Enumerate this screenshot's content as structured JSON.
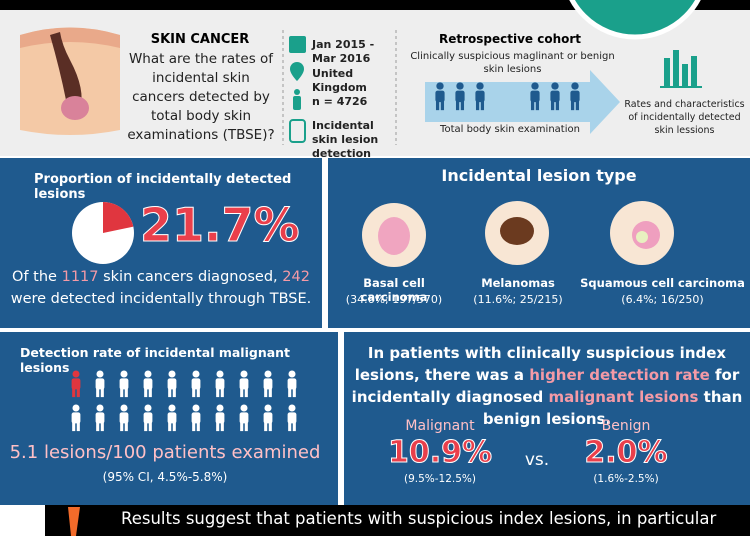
{
  "header": {
    "title": "SKIN CANCER",
    "question": "What are the rates of incidental skin cancers detected by total body skin examinations (TBSE)?"
  },
  "study": {
    "items": [
      "Jan 2015 - Mar 2016",
      "United Kingdom",
      "n = 4726",
      "Incidental skin lesion detection"
    ]
  },
  "design": {
    "title": "Retrospective cohort",
    "arrow_top": "Clinically suspicious maglinant or benign skin lesions",
    "arrow_bottom": "Total body skin examination",
    "outcome": "Rates and characteristics of incidentally detected skin lessions"
  },
  "proportion": {
    "title": "Proportion of incidentally detected lesions",
    "percent": 21.7,
    "percent_label": "21.7%",
    "text": [
      "Of the ",
      "1117",
      " skin cancers diagnosed, ",
      "242",
      " were detected incidentally through TBSE."
    ]
  },
  "lesion_types": {
    "title": "Incidental lesion type",
    "items": [
      {
        "name": "Basal cell carcinoma",
        "stats": "(34.6%; 197/570)"
      },
      {
        "name": "Melanomas",
        "stats": "(11.6%; 25/215)"
      },
      {
        "name": "Squamous cell carcinoma",
        "stats": "(6.4%; 16/250)"
      }
    ]
  },
  "detection": {
    "title": "Detection rate of incidental malignant lesions",
    "rate": "5.1 lesions/100 patients examined",
    "ci": "(95% CI, 4.5%-5.8%)"
  },
  "comparison": {
    "text": [
      "In patients with clinically suspicious index lesions, there was a ",
      "higher detection rate",
      " for incidentally diagnosed ",
      "malignant lesions",
      " than benign lesions."
    ],
    "malignant": {
      "label": "Malignant",
      "value": "10.9%",
      "ci": "(9.5%-12.5%)"
    },
    "vs": "vs.",
    "benign": {
      "label": "Benign",
      "value": "2.0%",
      "ci": "(1.6%-2.5%)"
    }
  },
  "footer": {
    "text": "Results suggest that patients with suspicious index lesions, in particular"
  }
}
